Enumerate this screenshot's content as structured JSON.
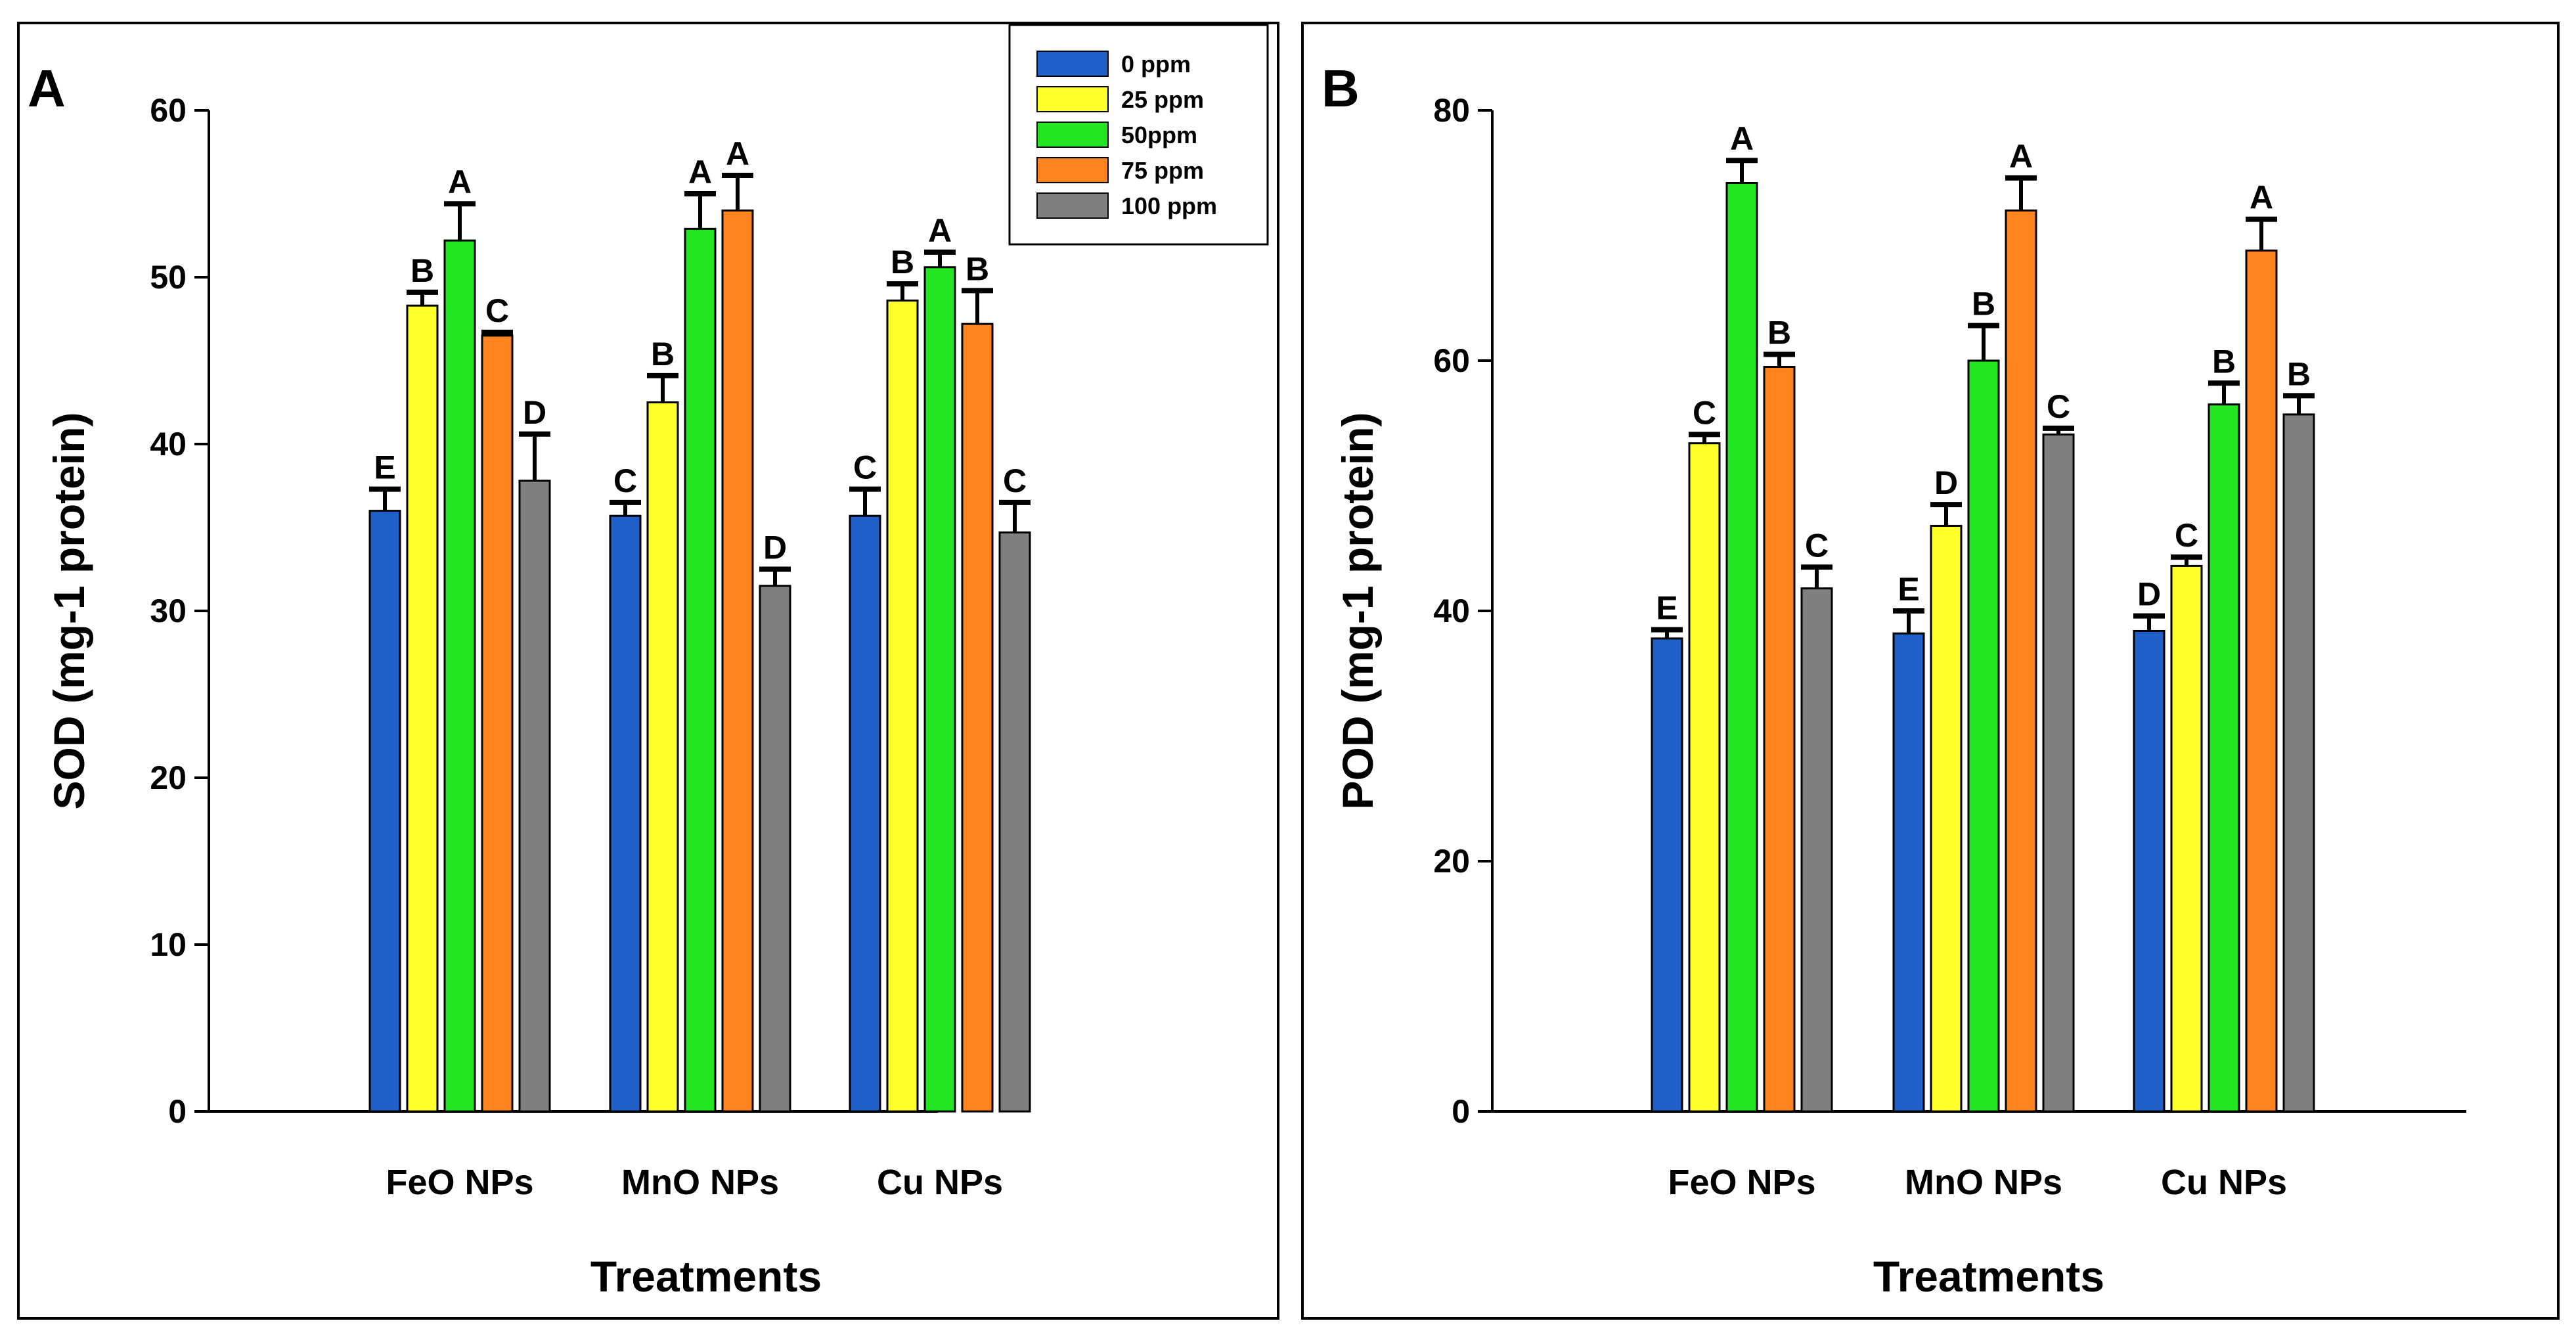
{
  "chart_data": [
    {
      "type": "bar",
      "panel": "A",
      "title": "",
      "xlabel": "Treatments",
      "ylabel": "SOD (mg-1 protein)",
      "ylim": [
        0,
        60
      ],
      "yticks": [
        0,
        10,
        20,
        30,
        40,
        50,
        60
      ],
      "categories": [
        "FeO NPs",
        "MnO NPs",
        "Cu NPs"
      ],
      "grid": false,
      "error_bars": true,
      "legend": {
        "position": "top-right",
        "entries": [
          "0 ppm",
          "25 ppm",
          "50ppm",
          "75 ppm",
          "100 ppm"
        ]
      },
      "series": [
        {
          "name": "0 ppm",
          "color": "#1f5fc8",
          "values": [
            36.0,
            35.7,
            35.7
          ],
          "errors": [
            1.3,
            0.8,
            1.6
          ],
          "labels": [
            "E",
            "C",
            "C"
          ]
        },
        {
          "name": "25 ppm",
          "color": "#ffff2a",
          "values": [
            48.3,
            42.5,
            48.6
          ],
          "errors": [
            0.8,
            1.6,
            1.0
          ],
          "labels": [
            "B",
            "B",
            "B"
          ]
        },
        {
          "name": "50ppm",
          "color": "#22e622",
          "values": [
            52.2,
            52.9,
            50.6
          ],
          "errors": [
            2.2,
            2.1,
            0.9
          ],
          "labels": [
            "A",
            "A",
            "A"
          ]
        },
        {
          "name": "75 ppm",
          "color": "#ff8420",
          "values": [
            46.5,
            54.0,
            47.2
          ],
          "errors": [
            0.2,
            2.1,
            2.0
          ],
          "labels": [
            "C",
            "A",
            "B"
          ]
        },
        {
          "name": "100 ppm",
          "color": "#7f7f7f",
          "values": [
            37.8,
            31.5,
            34.7
          ],
          "errors": [
            2.8,
            1.0,
            1.8
          ],
          "labels": [
            "D",
            "D",
            "C"
          ]
        }
      ]
    },
    {
      "type": "bar",
      "panel": "B",
      "title": "",
      "xlabel": "Treatments",
      "ylabel": "POD (mg-1 protein)",
      "ylim": [
        0,
        80
      ],
      "yticks": [
        0,
        20,
        40,
        60,
        80
      ],
      "categories": [
        "FeO NPs",
        "MnO NPs",
        "Cu NPs"
      ],
      "grid": false,
      "error_bars": true,
      "series": [
        {
          "name": "0 ppm",
          "color": "#1f5fc8",
          "values": [
            37.8,
            38.2,
            38.4
          ],
          "errors": [
            0.7,
            1.8,
            1.2
          ],
          "labels": [
            "E",
            "E",
            "D"
          ]
        },
        {
          "name": "25 ppm",
          "color": "#ffff2a",
          "values": [
            53.4,
            46.8,
            43.6
          ],
          "errors": [
            0.7,
            1.7,
            0.7
          ],
          "labels": [
            "C",
            "D",
            "C"
          ]
        },
        {
          "name": "50ppm",
          "color": "#22e622",
          "values": [
            74.2,
            60.0,
            56.5
          ],
          "errors": [
            1.8,
            2.8,
            1.7
          ],
          "labels": [
            "A",
            "B",
            "B"
          ]
        },
        {
          "name": "75 ppm",
          "color": "#ff8420",
          "values": [
            59.5,
            72.0,
            68.8
          ],
          "errors": [
            1.0,
            2.6,
            2.5
          ],
          "labels": [
            "B",
            "A",
            "A"
          ]
        },
        {
          "name": "100 ppm",
          "color": "#7f7f7f",
          "values": [
            41.8,
            54.1,
            55.7
          ],
          "errors": [
            1.7,
            0.5,
            1.5
          ],
          "labels": [
            "C",
            "C",
            "B"
          ]
        }
      ]
    }
  ]
}
